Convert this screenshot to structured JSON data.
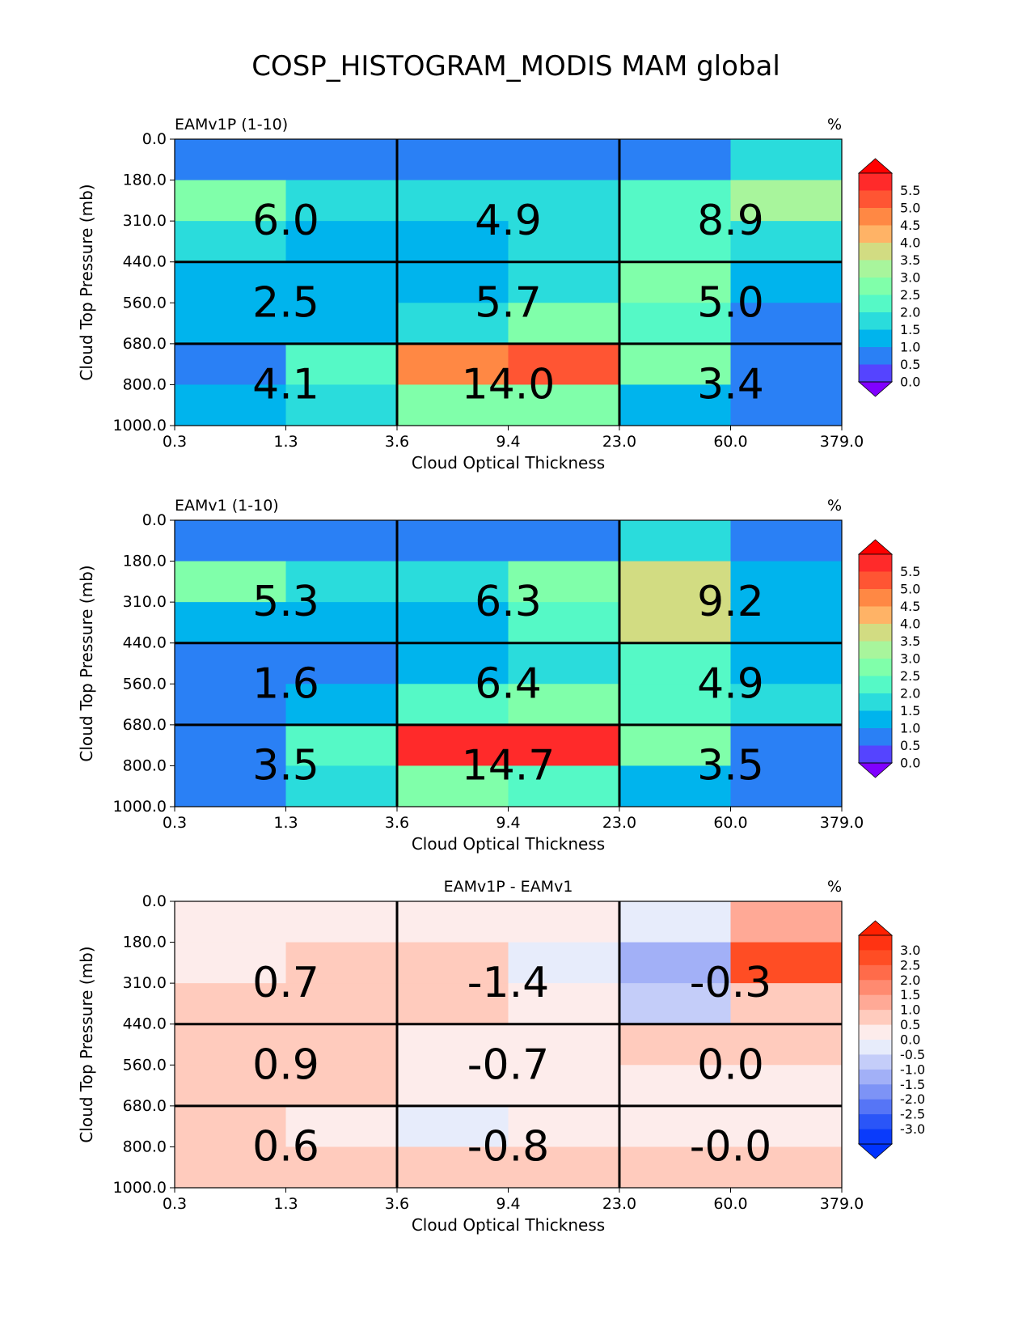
{
  "title": "COSP_HISTOGRAM_MODIS MAM global",
  "chart_data": [
    {
      "type": "heatmap",
      "title": "EAMv1P (1-10)",
      "units": "%",
      "xlabel": "Cloud Optical Thickness",
      "ylabel": "Cloud Top Pressure (mb)",
      "x_ticks": [
        "0.3",
        "1.3",
        "3.6",
        "9.4",
        "23.0",
        "60.0",
        "379.0"
      ],
      "y_ticks": [
        "0.0",
        "180.0",
        "310.0",
        "440.0",
        "560.0",
        "680.0",
        "800.0",
        "1000.0"
      ],
      "values": [
        [
          0.1,
          0.1,
          0.1,
          0.1,
          0.1,
          1.3
        ],
        [
          2.3,
          1.3,
          1.3,
          1.3,
          1.8,
          2.8
        ],
        [
          1.3,
          0.8,
          0.8,
          1.3,
          1.8,
          1.3
        ],
        [
          0.8,
          0.8,
          0.8,
          1.3,
          2.3,
          0.8
        ],
        [
          0.8,
          0.8,
          1.3,
          2.3,
          1.8,
          0.3
        ],
        [
          0.3,
          1.8,
          4.3,
          4.8,
          2.3,
          0.3
        ],
        [
          0.8,
          1.3,
          2.3,
          2.3,
          0.8,
          0.3
        ]
      ],
      "group_totals": [
        [
          "6.0",
          "4.9",
          "8.9"
        ],
        [
          "2.5",
          "5.7",
          "5.0"
        ],
        [
          "4.1",
          "14.0",
          "3.4"
        ]
      ],
      "colorbar": {
        "ticks": [
          "5.5",
          "5.0",
          "4.5",
          "4.0",
          "3.5",
          "3.0",
          "2.5",
          "2.0",
          "1.5",
          "1.0",
          "0.5",
          "0.0"
        ],
        "colors": [
          "#ff2a2a",
          "#ff5533",
          "#ff8844",
          "#ffb366",
          "#d2dc82",
          "#a8f59c",
          "#80ffaa",
          "#55f9c6",
          "#2adcdc",
          "#00b4ed",
          "#2a80f5",
          "#5544ff"
        ],
        "over": "#ff0000",
        "under": "#8000ff"
      }
    },
    {
      "type": "heatmap",
      "title": "EAMv1 (1-10)",
      "units": "%",
      "xlabel": "Cloud Optical Thickness",
      "ylabel": "Cloud Top Pressure (mb)",
      "x_ticks": [
        "0.3",
        "1.3",
        "3.6",
        "9.4",
        "23.0",
        "60.0",
        "379.0"
      ],
      "y_ticks": [
        "0.0",
        "180.0",
        "310.0",
        "440.0",
        "560.0",
        "680.0",
        "800.0",
        "1000.0"
      ],
      "values": [
        [
          0.1,
          0.1,
          0.1,
          0.1,
          1.3,
          0.3
        ],
        [
          2.3,
          1.3,
          1.3,
          2.3,
          3.3,
          0.8
        ],
        [
          0.8,
          0.8,
          0.8,
          1.8,
          3.3,
          0.8
        ],
        [
          0.3,
          0.3,
          0.8,
          1.3,
          1.8,
          0.8
        ],
        [
          0.3,
          0.8,
          1.8,
          2.3,
          1.8,
          1.3
        ],
        [
          0.3,
          1.8,
          5.3,
          5.3,
          2.3,
          0.3
        ],
        [
          0.3,
          1.3,
          2.3,
          1.8,
          0.8,
          0.3
        ]
      ],
      "group_totals": [
        [
          "5.3",
          "6.3",
          "9.2"
        ],
        [
          "1.6",
          "6.4",
          "4.9"
        ],
        [
          "3.5",
          "14.7",
          "3.5"
        ]
      ],
      "colorbar": {
        "ticks": [
          "5.5",
          "5.0",
          "4.5",
          "4.0",
          "3.5",
          "3.0",
          "2.5",
          "2.0",
          "1.5",
          "1.0",
          "0.5",
          "0.0"
        ],
        "colors": [
          "#ff2a2a",
          "#ff5533",
          "#ff8844",
          "#ffb366",
          "#d2dc82",
          "#a8f59c",
          "#80ffaa",
          "#55f9c6",
          "#2adcdc",
          "#00b4ed",
          "#2a80f5",
          "#5544ff"
        ],
        "over": "#ff0000",
        "under": "#8000ff"
      }
    },
    {
      "type": "heatmap",
      "title": "EAMv1P - EAMv1",
      "units": "%",
      "xlabel": "Cloud Optical Thickness",
      "ylabel": "Cloud Top Pressure (mb)",
      "x_ticks": [
        "0.3",
        "1.3",
        "3.6",
        "9.4",
        "23.0",
        "60.0",
        "379.0"
      ],
      "y_ticks": [
        "0.0",
        "180.0",
        "310.0",
        "440.0",
        "560.0",
        "680.0",
        "800.0",
        "1000.0"
      ],
      "values": [
        [
          -0.1,
          -0.1,
          -0.1,
          -0.1,
          -0.8,
          0.8
        ],
        [
          -0.1,
          0.1,
          0.1,
          -0.8,
          -1.8,
          2.3
        ],
        [
          0.1,
          0.1,
          0.1,
          -0.1,
          -1.3,
          0.1
        ],
        [
          0.1,
          0.1,
          -0.1,
          -0.1,
          0.1,
          0.1
        ],
        [
          0.1,
          0.1,
          -0.1,
          -0.1,
          -0.1,
          -0.1
        ],
        [
          0.1,
          -0.1,
          -0.8,
          -0.1,
          -0.1,
          -0.1
        ],
        [
          0.1,
          0.1,
          0.1,
          0.1,
          0.1,
          0.1
        ]
      ],
      "group_totals": [
        [
          "0.7",
          "-1.4",
          "-0.3"
        ],
        [
          "0.9",
          "-0.7",
          "0.0"
        ],
        [
          "0.6",
          "-0.8",
          "-0.0"
        ]
      ],
      "colorbar": {
        "ticks": [
          "3.0",
          "2.5",
          "2.0",
          "1.5",
          "1.0",
          "0.5",
          "0.0",
          "-0.5",
          "-1.0",
          "-1.5",
          "-2.0",
          "-2.5",
          "-3.0"
        ],
        "colors": [
          "#ff3312",
          "#ff4d24",
          "#ff6b4a",
          "#ff8a70",
          "#ffa996",
          "#ffcbbd",
          "#fdeceb",
          "#e7ecfb",
          "#c4cdf9",
          "#a2b0f7",
          "#7d93f6",
          "#5675f6",
          "#2a55f8",
          "#0a3bfb"
        ],
        "over": "#ff2000",
        "under": "#0033ff"
      }
    }
  ]
}
